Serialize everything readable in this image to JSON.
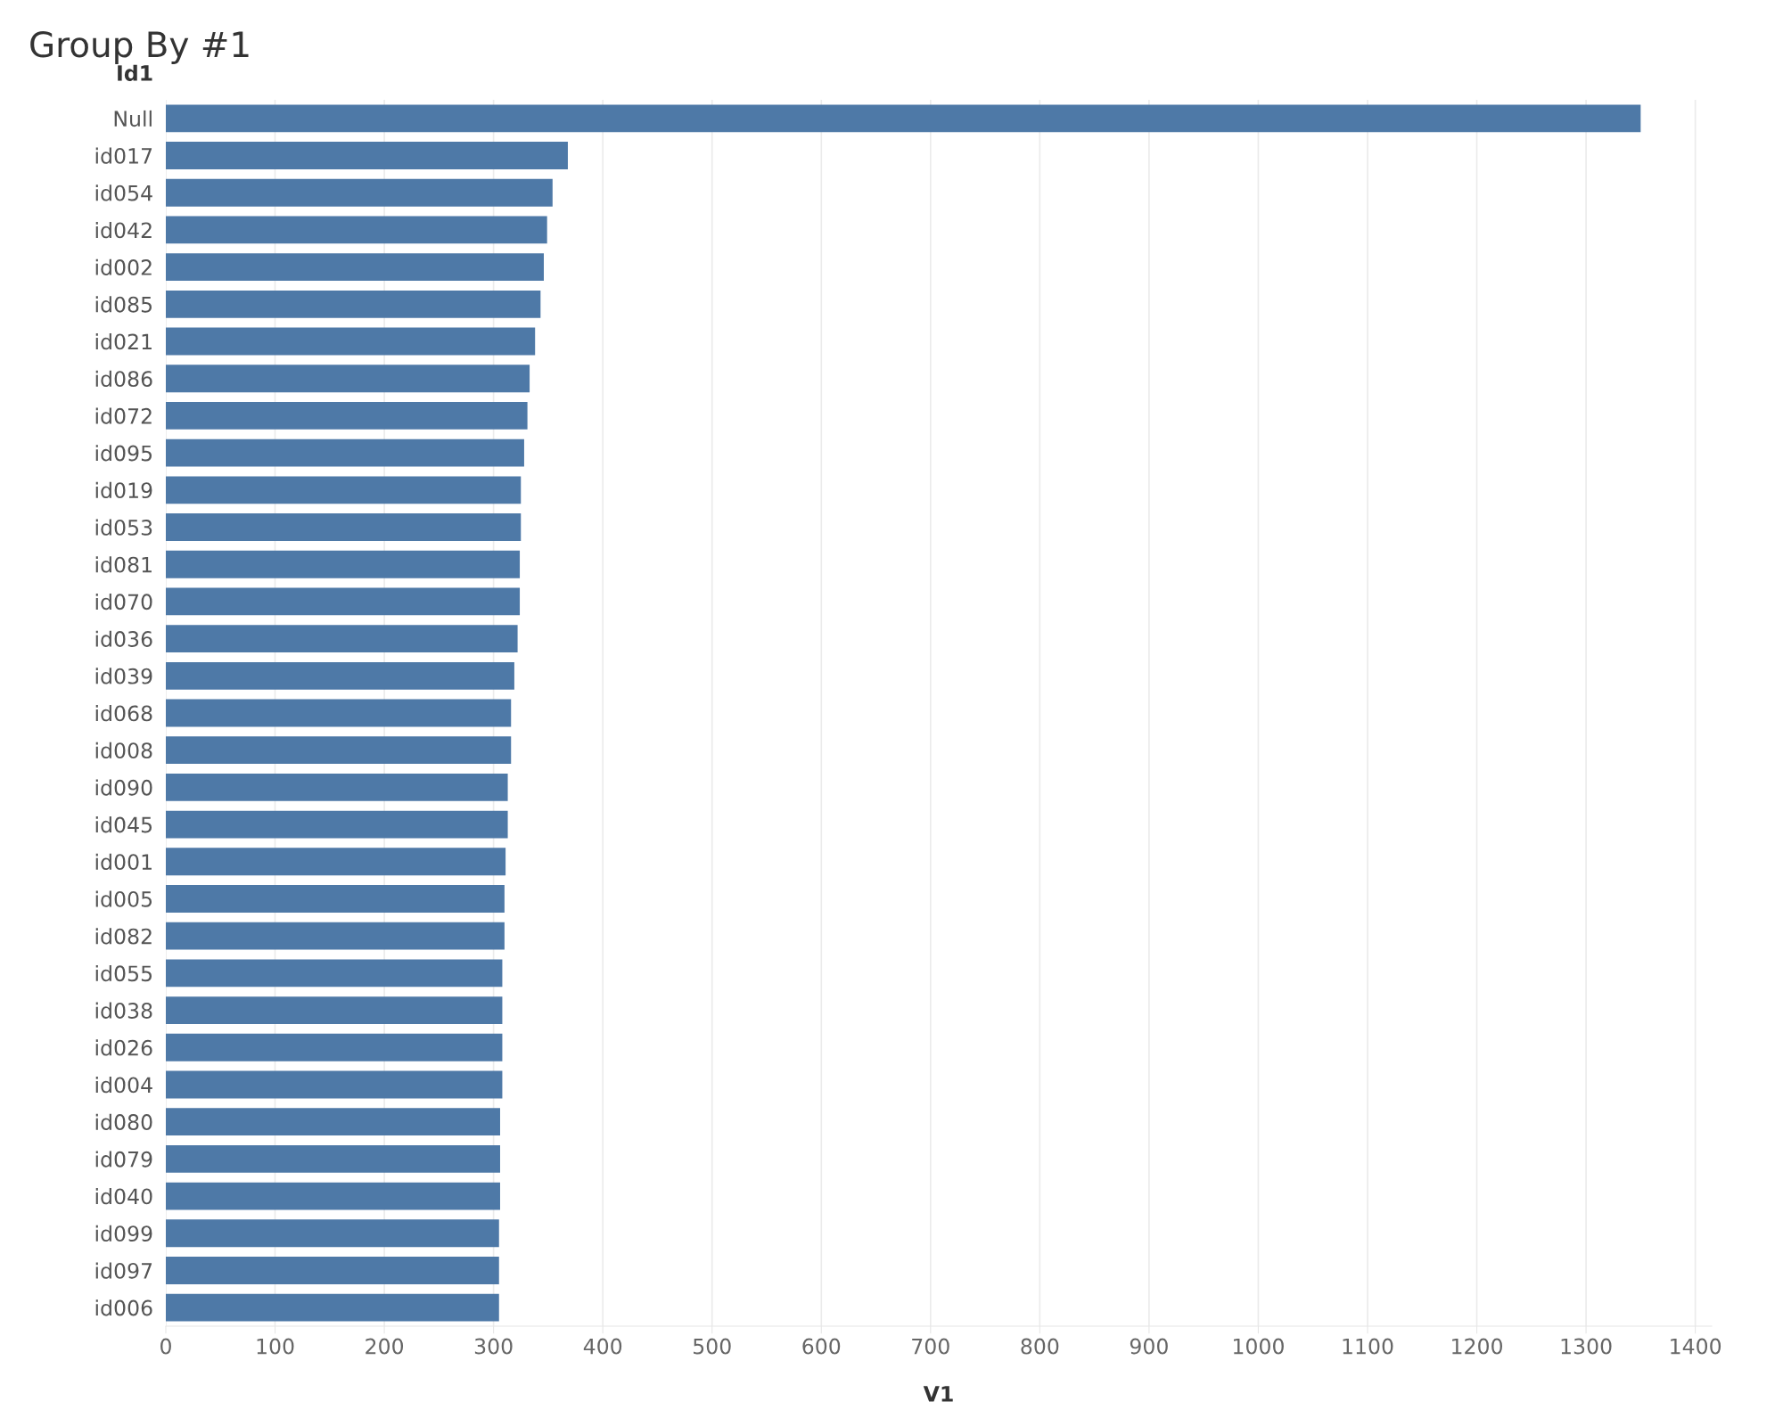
{
  "chart_data": {
    "type": "bar",
    "orientation": "horizontal",
    "title": "Group By #1",
    "xlabel": "V1",
    "ylabel": "Id1",
    "categories": [
      "Null",
      "id017",
      "id054",
      "id042",
      "id002",
      "id085",
      "id021",
      "id086",
      "id072",
      "id095",
      "id019",
      "id053",
      "id081",
      "id070",
      "id036",
      "id039",
      "id068",
      "id008",
      "id090",
      "id045",
      "id001",
      "id005",
      "id082",
      "id055",
      "id038",
      "id026",
      "id004",
      "id080",
      "id079",
      "id040",
      "id099",
      "id097",
      "id006"
    ],
    "values": [
      1350,
      368,
      354,
      349,
      346,
      343,
      338,
      333,
      331,
      328,
      325,
      325,
      324,
      324,
      322,
      319,
      316,
      316,
      313,
      313,
      311,
      310,
      310,
      308,
      308,
      308,
      308,
      306,
      306,
      306,
      305,
      305,
      305
    ],
    "color": "#4e79a7",
    "xlim": [
      0,
      1415
    ],
    "xticks": [
      0,
      100,
      200,
      300,
      400,
      500,
      600,
      700,
      800,
      900,
      1000,
      1100,
      1200,
      1300,
      1400
    ],
    "grid": "x"
  }
}
